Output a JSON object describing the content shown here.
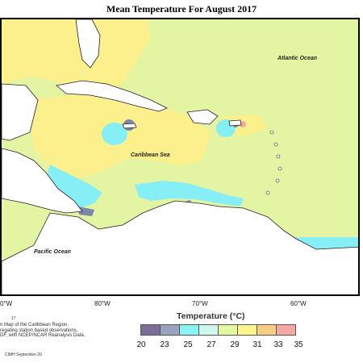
{
  "title": "Mean Temperature For August 2017",
  "labels": {
    "atlantic": "Atlantic Ocean",
    "caribbean": "Caribbean Sea",
    "pacific": "Pacific Ocean"
  },
  "longitudes": [
    "0°W",
    "80°W",
    "70°W",
    "60°W"
  ],
  "credits": {
    "fig": "17",
    "line1": "n Map of the Caribbean Region.",
    "line2": "regating station based observations,",
    "line3": "DF, with NCEP/NCAR Reanalysis Data.",
    "logo": "CIMH September-20"
  },
  "legend": {
    "title": "Temperature (°C)",
    "ticks": [
      "20",
      "23",
      "25",
      "27",
      "29",
      "31",
      "33",
      "35"
    ],
    "colors": [
      "#7b6e96",
      "#9aa3bd",
      "#88f4f4",
      "#cdf7ea",
      "#e3f6a0",
      "#fbf58e",
      "#f7cf83",
      "#f1aaa1"
    ]
  },
  "colors": {
    "land": "#ffffff",
    "outline": "#222222",
    "cold": "#7c86a8",
    "cool": "#86eef5",
    "warm": "#fbf08c",
    "base": "#e3f5a2",
    "hot": "#f4a99c"
  }
}
